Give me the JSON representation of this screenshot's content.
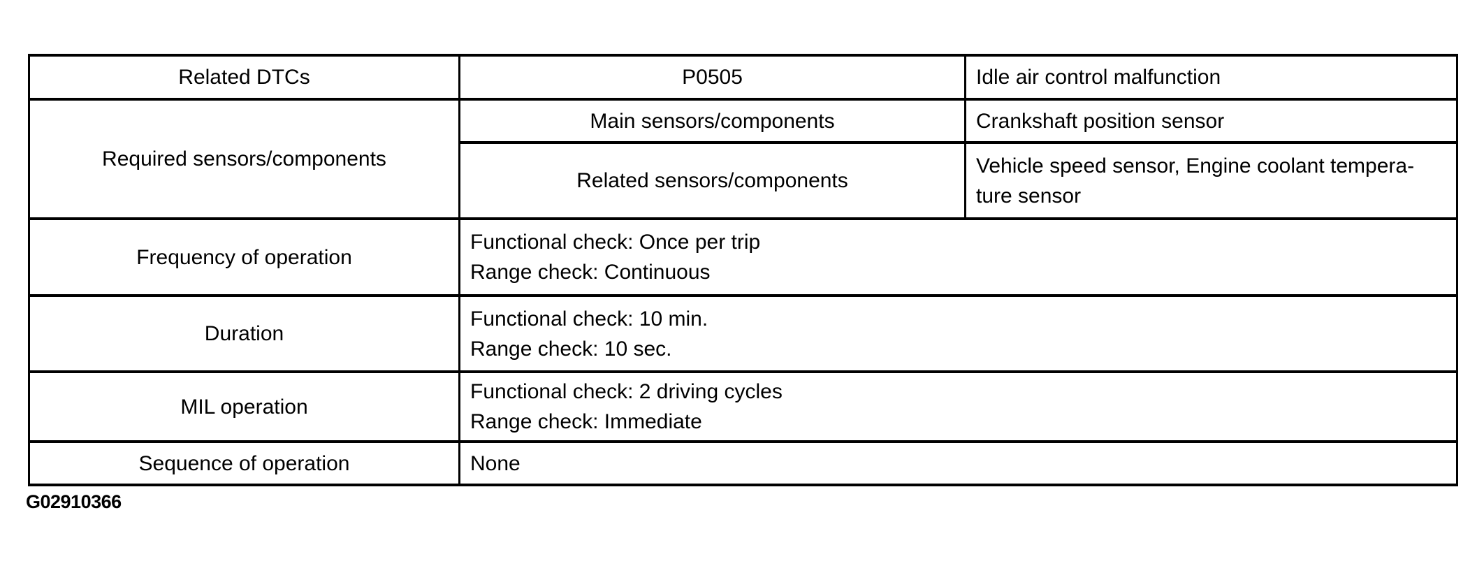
{
  "table": {
    "related_dtcs": {
      "label": "Related DTCs",
      "code": "P0505",
      "description": "Idle air control malfunction"
    },
    "required_sensors": {
      "label": "Required sensors/components",
      "main": {
        "label": "Main sensors/components",
        "value": "Crankshaft position sensor"
      },
      "related": {
        "label": "Related sensors/components",
        "value": "Vehicle speed sensor, Engine coolant tempera-\nture sensor"
      }
    },
    "frequency": {
      "label": "Frequency of operation",
      "value": "Functional check: Once per trip\nRange check: Continuous"
    },
    "duration": {
      "label": "Duration",
      "value": "Functional check: 10 min.\nRange check: 10 sec."
    },
    "mil": {
      "label": "MIL operation",
      "value": "Functional check: 2 driving cycles\nRange check: Immediate"
    },
    "sequence": {
      "label": "Sequence of operation",
      "value": "None"
    }
  },
  "footer": {
    "figure_id": "G02910366"
  },
  "colors": {
    "border": "#000000",
    "text": "#000000",
    "background": "#ffffff"
  }
}
